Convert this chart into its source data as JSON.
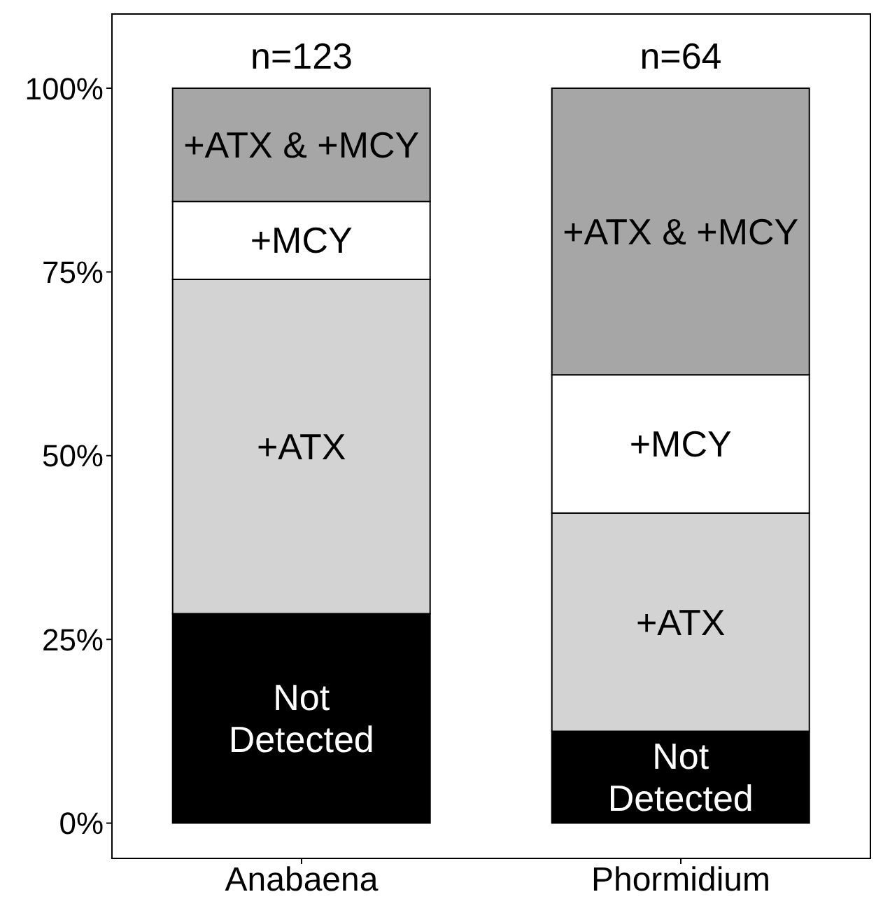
{
  "chart_data": {
    "type": "bar",
    "stacked": true,
    "categories": [
      "Anabaena",
      "Phormidium"
    ],
    "series": [
      {
        "name": "Not\nDetected",
        "color": "#000000",
        "values": [
          28.5,
          12.5
        ]
      },
      {
        "name": "+ATX",
        "color": "#d3d3d3",
        "values": [
          45.5,
          29.7
        ]
      },
      {
        "name": "+MCY",
        "color": "#ffffff",
        "values": [
          10.6,
          18.8
        ]
      },
      {
        "name": "+ATX & +MCY",
        "color": "#a6a6a6",
        "values": [
          15.4,
          39.0
        ]
      }
    ],
    "ylim": [
      -4.8,
      110.1
    ],
    "yticks": [
      {
        "value": 0,
        "label": "0%"
      },
      {
        "value": 25,
        "label": "25%"
      },
      {
        "value": 50,
        "label": "50%"
      },
      {
        "value": 75,
        "label": "75%"
      },
      {
        "value": 100,
        "label": "100%"
      }
    ],
    "annotations": [
      {
        "text": "n=123",
        "x": "Anabaena",
        "y": 100
      },
      {
        "text": "n=64",
        "x": "Phormidium",
        "y": 100
      }
    ],
    "grid": false,
    "legend": false
  }
}
